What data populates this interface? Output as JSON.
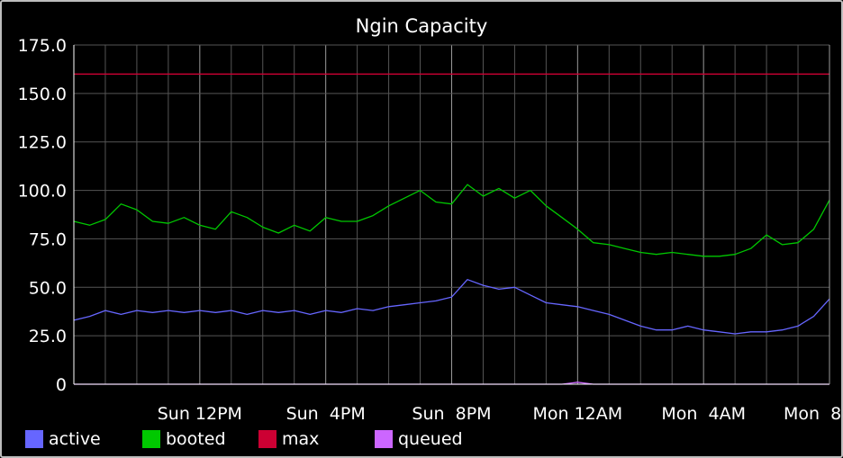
{
  "chart_data": {
    "type": "line",
    "title": "Ngin Capacity",
    "xlabel": "",
    "ylabel": "",
    "ylim": [
      0,
      175
    ],
    "yticks": [
      "0",
      "25.0",
      "50.0",
      "75.0",
      "100.0",
      "125.0",
      "150.0",
      "175.0"
    ],
    "ytick_values": [
      0,
      25,
      50,
      75,
      100,
      125,
      150,
      175
    ],
    "xlim": [
      0,
      24
    ],
    "xtick_labels": [
      "Sun 12PM",
      "Sun  4PM",
      "Sun  8PM",
      "Mon 12AM",
      "Mon  4AM",
      "Mon  8"
    ],
    "xtick_values": [
      4,
      8,
      12,
      16,
      20,
      24
    ],
    "grid": true,
    "legend_position": "bottom",
    "background": "#000000",
    "colors": {
      "grid": "#555555",
      "major_grid": "#9a9a9a",
      "text": "#ffffff",
      "axis": "#ffffff"
    },
    "x": [
      0,
      0.5,
      1,
      1.5,
      2,
      2.5,
      3,
      3.5,
      4,
      4.5,
      5,
      5.5,
      6,
      6.5,
      7,
      7.5,
      8,
      8.5,
      9,
      9.5,
      10,
      10.5,
      11,
      11.5,
      12,
      12.5,
      13,
      13.5,
      14,
      14.5,
      15,
      15.5,
      16,
      16.5,
      17,
      17.5,
      18,
      18.5,
      19,
      19.5,
      20,
      20.5,
      21,
      21.5,
      22,
      22.5,
      23,
      23.5,
      24
    ],
    "series": [
      {
        "name": "active",
        "color": "#6666ff",
        "values": [
          33,
          35,
          38,
          36,
          38,
          37,
          38,
          37,
          38,
          37,
          38,
          36,
          38,
          37,
          38,
          36,
          38,
          37,
          39,
          38,
          40,
          41,
          42,
          43,
          45,
          54,
          51,
          49,
          50,
          46,
          42,
          41,
          40,
          38,
          36,
          33,
          30,
          28,
          28,
          30,
          28,
          27,
          26,
          27,
          27,
          28,
          30,
          35,
          44
        ]
      },
      {
        "name": "booted",
        "color": "#00c800",
        "values": [
          84,
          82,
          85,
          93,
          90,
          84,
          83,
          86,
          82,
          80,
          89,
          86,
          81,
          78,
          82,
          79,
          86,
          84,
          84,
          87,
          92,
          96,
          100,
          94,
          93,
          103,
          97,
          101,
          96,
          100,
          92,
          86,
          80,
          73,
          72,
          70,
          68,
          67,
          68,
          67,
          66,
          66,
          67,
          70,
          77,
          72,
          73,
          80,
          95
        ]
      },
      {
        "name": "max",
        "color": "#cc0033",
        "values": [
          160,
          160,
          160,
          160,
          160,
          160,
          160,
          160,
          160,
          160,
          160,
          160,
          160,
          160,
          160,
          160,
          160,
          160,
          160,
          160,
          160,
          160,
          160,
          160,
          160,
          160,
          160,
          160,
          160,
          160,
          160,
          160,
          160,
          160,
          160,
          160,
          160,
          160,
          160,
          160,
          160,
          160,
          160,
          160,
          160,
          160,
          160,
          160,
          160
        ]
      },
      {
        "name": "queued",
        "color": "#cc66ff",
        "values": [
          0,
          0,
          0,
          0,
          0,
          0,
          0,
          0,
          0,
          0,
          0,
          0,
          0,
          0,
          0,
          0,
          0,
          0,
          0,
          0,
          0,
          0,
          0,
          0,
          0,
          0,
          0,
          0,
          0,
          0,
          0,
          0,
          1,
          0,
          0,
          0,
          0,
          0,
          0,
          0,
          0,
          0,
          0,
          0,
          0,
          0,
          0,
          0,
          0
        ]
      }
    ]
  }
}
